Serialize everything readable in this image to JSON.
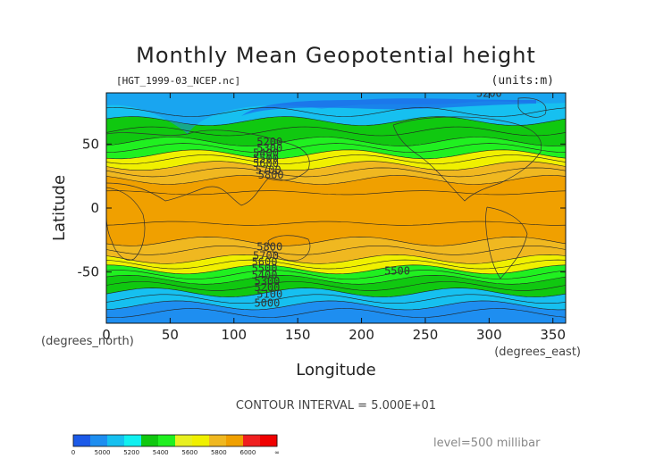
{
  "chart_data": {
    "type": "heatmap",
    "title": "Monthly Mean Geopotential height",
    "file_label": "[HGT_1999-03_NCEP.nc]",
    "units_label": "(units:m)",
    "xlabel": "Longitude",
    "ylabel": "Latitude",
    "x_unit_label": "(degrees_east)",
    "y_unit_label": "(degrees_north)",
    "xlim": [
      0,
      360
    ],
    "ylim": [
      -90,
      90
    ],
    "xticks": [
      "0",
      "50",
      "100",
      "150",
      "200",
      "250",
      "300",
      "350"
    ],
    "yticks": [
      "50",
      "0",
      "-50"
    ],
    "contour_interval_label": "CONTOUR INTERVAL = 5.000E+01",
    "level_label": "level=500 millibar",
    "contour_labels": [
      {
        "text": "5200",
        "lon": 300,
        "lat": 87
      },
      {
        "text": "5200",
        "lon": 128,
        "lat": 49
      },
      {
        "text": "5300",
        "lon": 128,
        "lat": 44
      },
      {
        "text": "5400",
        "lon": 125,
        "lat": 40
      },
      {
        "text": "5500",
        "lon": 125,
        "lat": 36
      },
      {
        "text": "5600",
        "lon": 125,
        "lat": 32
      },
      {
        "text": "5700",
        "lon": 127,
        "lat": 27
      },
      {
        "text": "5800",
        "lon": 129,
        "lat": 23
      },
      {
        "text": "5800",
        "lon": 128,
        "lat": -33
      },
      {
        "text": "5700",
        "lon": 125,
        "lat": -40
      },
      {
        "text": "5600",
        "lon": 124,
        "lat": -45
      },
      {
        "text": "5500",
        "lon": 124,
        "lat": -50
      },
      {
        "text": "5400",
        "lon": 124,
        "lat": -55
      },
      {
        "text": "5300",
        "lon": 126,
        "lat": -60
      },
      {
        "text": "5200",
        "lon": 126,
        "lat": -65
      },
      {
        "text": "5100",
        "lon": 128,
        "lat": -70
      },
      {
        "text": "5000",
        "lon": 126,
        "lat": -77
      },
      {
        "text": "5500",
        "lon": 228,
        "lat": -52
      }
    ],
    "color_scale": {
      "levels": [
        0,
        5000,
        5200,
        5400,
        5600,
        5800,
        6000
      ],
      "tick_labels": [
        "0",
        "5000",
        "5200",
        "5400",
        "5600",
        "5800",
        "6000",
        "∞"
      ],
      "colors": [
        "#1c5ae8",
        "#1e8ef0",
        "#16c0f0",
        "#10f0f0",
        "#10c810",
        "#20f020",
        "#e8f020",
        "#f0f000",
        "#f0b820",
        "#f0a000",
        "#f02020",
        "#f00000"
      ]
    },
    "zonal_bands": [
      {
        "lat_from": 90,
        "lat_to": 68,
        "value": 5180
      },
      {
        "lat_from": 68,
        "lat_to": 52,
        "value": 5350
      },
      {
        "lat_from": 52,
        "lat_to": 42,
        "value": 5480
      },
      {
        "lat_from": 42,
        "lat_to": 33,
        "value": 5650
      },
      {
        "lat_from": 33,
        "lat_to": 22,
        "value": 5760
      },
      {
        "lat_from": 22,
        "lat_to": -26,
        "value": 5850
      },
      {
        "lat_from": -26,
        "lat_to": -40,
        "value": 5760
      },
      {
        "lat_from": -40,
        "lat_to": -48,
        "value": 5650
      },
      {
        "lat_from": -48,
        "lat_to": -56,
        "value": 5480
      },
      {
        "lat_from": -56,
        "lat_to": -66,
        "value": 5330
      },
      {
        "lat_from": -66,
        "lat_to": -76,
        "value": 5150
      },
      {
        "lat_from": -76,
        "lat_to": -90,
        "value": 5020
      }
    ]
  }
}
